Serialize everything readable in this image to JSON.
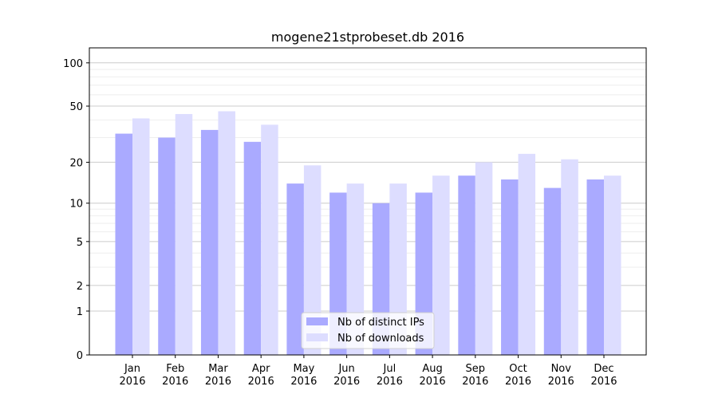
{
  "chart_data": {
    "type": "bar",
    "title": "mogene21stprobeset.db 2016",
    "xlabel": "",
    "ylabel": "",
    "yscale": "log(x+1)",
    "ylim": [
      0,
      120
    ],
    "yticks": [
      0,
      1,
      2,
      5,
      10,
      20,
      50,
      100
    ],
    "ytick_labels": [
      "0",
      "1",
      "2",
      "5",
      "10",
      "20",
      "50",
      "100"
    ],
    "categories": [
      "Jan\n2016",
      "Feb\n2016",
      "Mar\n2016",
      "Apr\n2016",
      "May\n2016",
      "Jun\n2016",
      "Jul\n2016",
      "Aug\n2016",
      "Sep\n2016",
      "Oct\n2016",
      "Nov\n2016",
      "Dec\n2016"
    ],
    "series": [
      {
        "name": "Nb of distinct IPs",
        "color": "#aaaaff",
        "values": [
          32,
          30,
          34,
          28,
          14,
          12,
          10,
          12,
          16,
          15,
          13,
          15
        ]
      },
      {
        "name": "Nb of downloads",
        "color": "#ddddff",
        "values": [
          41,
          44,
          46,
          37,
          19,
          14,
          14,
          16,
          20,
          23,
          21,
          16
        ]
      }
    ],
    "legend": "bottom-center",
    "grid": true
  }
}
